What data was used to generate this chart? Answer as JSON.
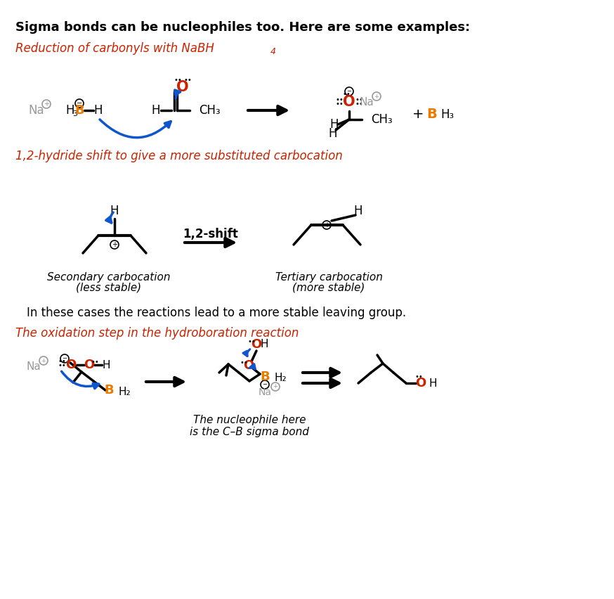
{
  "title": "Sigma bonds can be nucleophiles too. Here are some examples:",
  "sec1_label": "Reduction of carbonyls with NaBH",
  "sec1_sub": "4",
  "sec2_label": "1,2-hydride shift to give a more substituted carbocation",
  "sec3_label": "The oxidation step in the hydroboration reaction",
  "middle_text": "In these cases the reactions lead to a more stable leaving group.",
  "sec_carbo1": "Secondary carbocation",
  "sec_carbo2": "(less stable)",
  "tert_carbo1": "Tertiary carbocation",
  "tert_carbo2": "(more stable)",
  "nucl_note1": "The nucleophile here",
  "nucl_note2": "is the C–B sigma bond",
  "bg": "#ffffff",
  "black": "#000000",
  "red": "#cc2200",
  "orange": "#e87c00",
  "blue": "#1155cc",
  "gray": "#999999"
}
